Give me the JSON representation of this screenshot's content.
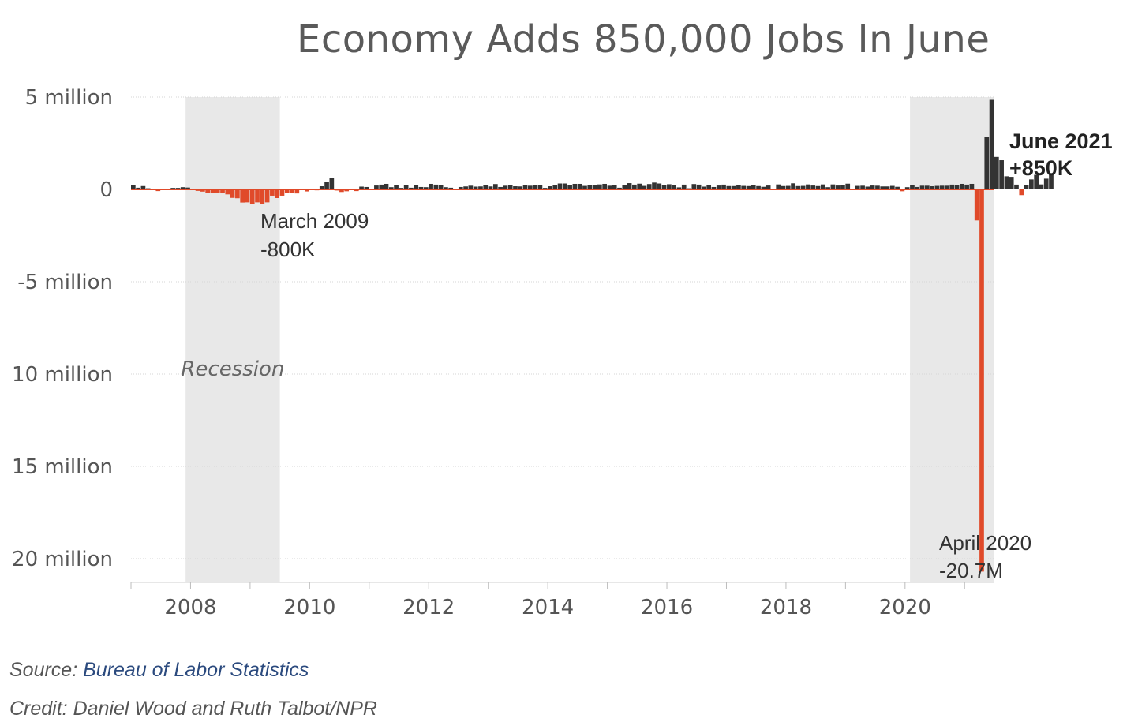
{
  "chart_data": {
    "type": "bar",
    "title": "Economy Adds 850,000 Jobs In June",
    "xlabel": "",
    "ylabel": "",
    "ylim": [
      -21000,
      5000
    ],
    "xlim": [
      2007.0,
      2021.5
    ],
    "y_ticks": [
      {
        "value": 5000,
        "label": "5 million"
      },
      {
        "value": 0,
        "label": "0"
      },
      {
        "value": -5000,
        "label": "-5 million"
      },
      {
        "value": -10000,
        "label": "10 million"
      },
      {
        "value": -15000,
        "label": "15 million"
      },
      {
        "value": -20000,
        "label": "20 million"
      }
    ],
    "x_ticks": [
      "2008",
      "2010",
      "2012",
      "2014",
      "2016",
      "2018",
      "2020"
    ],
    "recessions": [
      {
        "start": "2007-12",
        "end": "2009-06",
        "label": "Recession"
      },
      {
        "start": "2020-02",
        "end": "2021-06",
        "label": ""
      }
    ],
    "positive_color": "#333333",
    "negative_color": "#e04a2a",
    "months_start": "2007-01",
    "values_thousands": [
      240,
      90,
      180,
      60,
      -20,
      -90,
      -40,
      -20,
      80,
      80,
      120,
      100,
      -10,
      -80,
      -120,
      -210,
      -200,
      -170,
      -210,
      -270,
      -460,
      -480,
      -710,
      -700,
      -790,
      -700,
      -800,
      -700,
      -340,
      -470,
      -340,
      -210,
      -190,
      -220,
      -10,
      -110,
      -10,
      -50,
      170,
      400,
      600,
      -60,
      -140,
      -100,
      -10,
      -90,
      150,
      130,
      30,
      210,
      260,
      300,
      120,
      220,
      80,
      250,
      90,
      220,
      130,
      120,
      300,
      260,
      230,
      120,
      90,
      40,
      130,
      160,
      200,
      150,
      160,
      240,
      160,
      290,
      130,
      200,
      240,
      170,
      160,
      240,
      200,
      250,
      230,
      80,
      170,
      240,
      320,
      320,
      220,
      300,
      300,
      190,
      250,
      230,
      270,
      300,
      200,
      220,
      90,
      230,
      340,
      260,
      310,
      190,
      290,
      370,
      320,
      230,
      280,
      250,
      110,
      260,
      60,
      290,
      260,
      150,
      250,
      130,
      210,
      260,
      180,
      180,
      220,
      190,
      180,
      230,
      180,
      140,
      210,
      20,
      270,
      180,
      190,
      330,
      180,
      190,
      270,
      210,
      180,
      270,
      120,
      270,
      210,
      220,
      310,
      30,
      190,
      200,
      150,
      210,
      200,
      160,
      160,
      190,
      140,
      -100,
      120,
      240,
      130,
      200,
      200,
      170,
      190,
      200,
      200,
      260,
      230,
      300,
      260,
      300,
      -1680,
      -20700,
      2830,
      4850,
      1760,
      1580,
      710,
      680,
      260,
      -310,
      230,
      540,
      790,
      270,
      580,
      850
    ],
    "annotations": {
      "march_2009": {
        "line1": "March 2009",
        "line2": "-800K"
      },
      "april_2020": {
        "line1": "April 2020",
        "line2": "-20.7M"
      },
      "june_2021": {
        "line1": "June 2021",
        "line2": "+850K"
      }
    }
  },
  "footer": {
    "source_prefix": "Source: ",
    "source_link": "Bureau of Labor Statistics",
    "credit": "Credit: Daniel Wood and Ruth Talbot/NPR"
  }
}
